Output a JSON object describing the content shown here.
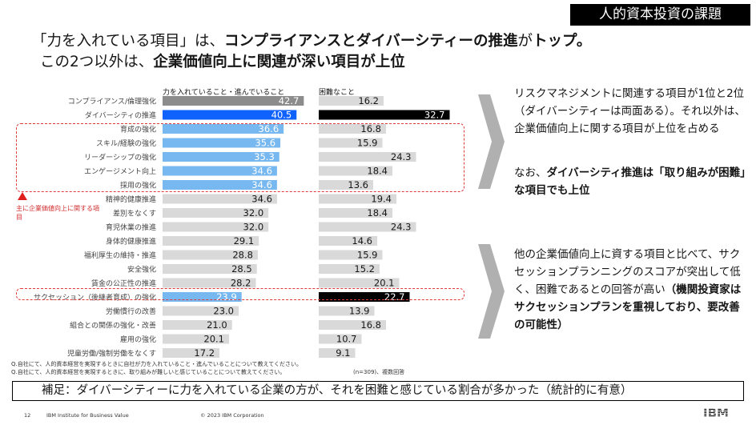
{
  "section_tag": "人的資本投資の課題",
  "headline": {
    "line1_pre": "「力を入れている項目」は、",
    "line1_bold": "コンプライアンスとダイバーシティーの推進",
    "line1_mid": "が",
    "line1_end": "トップ。",
    "line2_pre": "この2つ以外は、",
    "line2_bold": "企業価値向上に関連が深い項目が上位"
  },
  "chart_data": {
    "type": "bar",
    "categories": [
      "コンプライアンス/倫理強化",
      "ダイバーシティの推進",
      "育成の強化",
      "スキル/経験の強化",
      "リーダーシップの強化",
      "エンゲージメント向上",
      "採用の強化",
      "精神的健康推進",
      "差別をなくす",
      "育児休業の推進",
      "身体的健康推進",
      "福利厚生の維持・推進",
      "安全強化",
      "賃金の公正性の推進",
      "サクセッション（後継者育成）の強化",
      "労働慣行の改善",
      "組合との関係の強化・改善",
      "雇用の強化",
      "児童労働/強制労働をなくす"
    ],
    "series": [
      {
        "name": "力を入れていること・進んでいること",
        "values": [
          42.7,
          40.5,
          36.6,
          35.6,
          35.3,
          34.6,
          34.6,
          34.6,
          32.0,
          32.0,
          29.1,
          28.8,
          28.5,
          28.2,
          23.9,
          23.0,
          21.0,
          20.1,
          17.2
        ]
      },
      {
        "name": "困難なこと",
        "values": [
          16.2,
          32.7,
          16.8,
          15.9,
          24.3,
          18.4,
          13.6,
          19.4,
          18.4,
          24.3,
          14.6,
          15.9,
          15.2,
          20.1,
          22.7,
          13.9,
          16.8,
          10.7,
          9.1
        ]
      }
    ],
    "colors": {
      "gray": "#d9d9d9",
      "dark_gray": "#8c8c8c",
      "blue": "#0f62fe",
      "light_blue": "#78b8f0",
      "black": "#000000",
      "highlight_red": "#e03b3b"
    }
  },
  "annotations": {
    "red_note": "主に企業価値向上に関する項目",
    "q1": "Q.自社にて、人的資本経営を実現するときに自社が力を入れていること・進んでいることについて教えてください。",
    "q2": "Q.自社にて、人的資本経営を実現するときに、取り組みが難しいと感じていることについて教えてください。",
    "sample_note": "(n=309)、複数回答"
  },
  "side_text": {
    "block1_p1": "リスクマネジメントに関連する項目が1位と2位（ダイバーシティーは両面ある）。それ以外は、企業価値向上に関する項目が上位を占める",
    "block1_p2_pre": "なお、",
    "block1_p2_bold": "ダイバーシティ推進は「取り組みが困難」な項目でも上位",
    "block2_pre": "他の企業価値向上に資する項目と比べて、サクセッションプランニングのスコアが突出して低く、困難であるとの回答が高い",
    "block2_bold": "（機関投資家はサクセッションプランを重視しており、要改善の可能性）"
  },
  "footer_note": "補足：ダイバーシティーに力を入れている企業の方が、それを困難と感じている割合が多かった（統計的に有意）",
  "footer": {
    "page": "12",
    "org": "IBM Institute for Business Value",
    "copyright": "© 2023 IBM Corporation",
    "logo": "IBM"
  }
}
